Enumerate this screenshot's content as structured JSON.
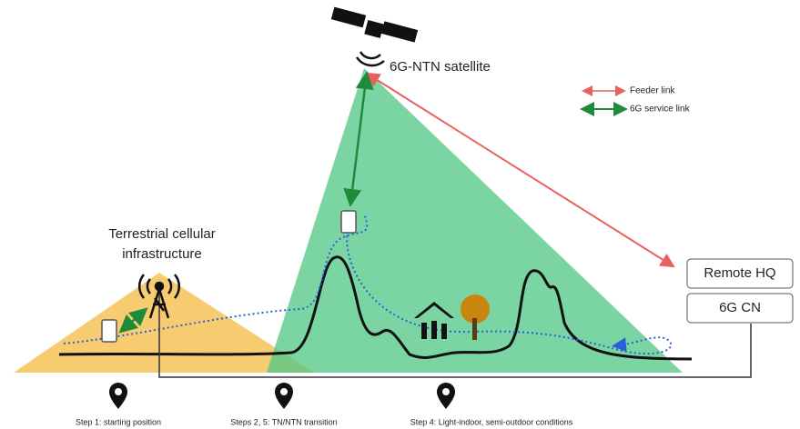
{
  "satellite": {
    "label": "6G-NTN satellite"
  },
  "legend": [
    {
      "label": "Feeder link"
    },
    {
      "label": "6G service link"
    }
  ],
  "terrestrial": {
    "label_lines": [
      "Terrestrial cellular",
      "infrastructure"
    ]
  },
  "boxes": [
    {
      "label": "Remote HQ"
    },
    {
      "label": "6G CN"
    }
  ],
  "steps": [
    {
      "label": "Step 1: starting position"
    },
    {
      "label": "Steps 2, 5: TN/NTN transition"
    },
    {
      "label": "Step 4: Light-indoor, semi-outdoor conditions"
    }
  ]
}
